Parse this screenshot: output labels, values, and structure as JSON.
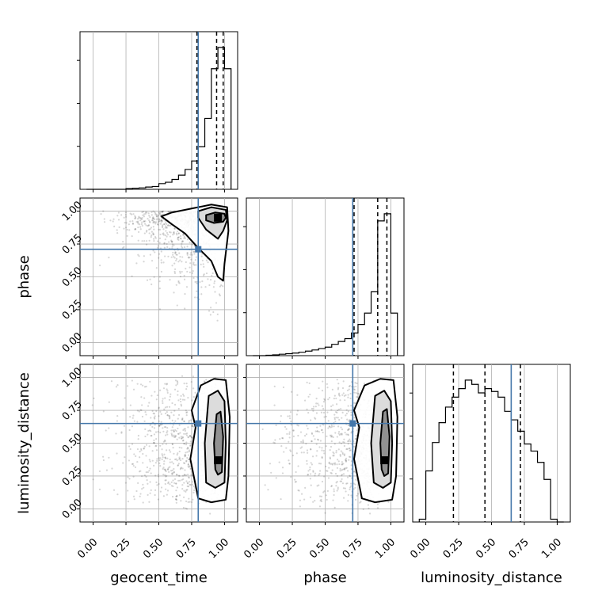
{
  "chart_data": {
    "type": "corner",
    "parameters": [
      "geocent_time",
      "phase",
      "luminosity_distance"
    ],
    "truths": {
      "geocent_time": 0.8,
      "phase": 0.71,
      "luminosity_distance": 0.65
    },
    "truth_color": "#4477aa",
    "axis_ticks": [
      "0.00",
      "0.25",
      "0.50",
      "0.75",
      "1.00"
    ],
    "x_labels": [
      "geocent_time",
      "phase",
      "luminosity_distance"
    ],
    "y_labels": [
      "phase",
      "luminosity_distance"
    ],
    "grid": true,
    "histograms": [
      {
        "parameter": "geocent_time",
        "bin_edges": [
          -0.05,
          0.0,
          0.05,
          0.1,
          0.15,
          0.2,
          0.25,
          0.3,
          0.35,
          0.4,
          0.45,
          0.5,
          0.55,
          0.6,
          0.65,
          0.7,
          0.75,
          0.8,
          0.85,
          0.9,
          0.95,
          1.0,
          1.05
        ],
        "counts": [
          0,
          0,
          0,
          0,
          0,
          0,
          0.005,
          0.008,
          0.01,
          0.016,
          0.02,
          0.04,
          0.05,
          0.07,
          0.1,
          0.14,
          0.2,
          0.3,
          0.5,
          0.85,
          1.0,
          0.85
        ],
        "quantiles": [
          0.79,
          0.94,
          0.99
        ]
      },
      {
        "parameter": "phase",
        "bin_edges": [
          -0.05,
          0.0,
          0.05,
          0.1,
          0.15,
          0.2,
          0.25,
          0.3,
          0.35,
          0.4,
          0.45,
          0.5,
          0.55,
          0.6,
          0.65,
          0.7,
          0.75,
          0.8,
          0.85,
          0.9,
          0.95,
          1.0,
          1.05
        ],
        "counts": [
          0,
          0,
          0.003,
          0.006,
          0.01,
          0.014,
          0.018,
          0.024,
          0.032,
          0.04,
          0.05,
          0.06,
          0.08,
          0.1,
          0.12,
          0.16,
          0.22,
          0.3,
          0.45,
          0.95,
          1.0,
          0.3
        ],
        "quantiles": [
          0.72,
          0.9,
          0.97
        ]
      },
      {
        "parameter": "luminosity_distance",
        "bin_edges": [
          -0.05,
          0.0,
          0.05,
          0.1,
          0.15,
          0.2,
          0.25,
          0.3,
          0.35,
          0.4,
          0.45,
          0.5,
          0.55,
          0.6,
          0.65,
          0.7,
          0.75,
          0.8,
          0.85,
          0.9,
          0.95,
          1.0,
          1.05
        ],
        "counts": [
          0.02,
          0.36,
          0.56,
          0.7,
          0.81,
          0.88,
          0.94,
          1.0,
          0.97,
          0.91,
          0.94,
          0.92,
          0.88,
          0.78,
          0.72,
          0.64,
          0.55,
          0.5,
          0.42,
          0.3,
          0.02,
          0
        ],
        "quantiles": [
          0.21,
          0.45,
          0.72
        ]
      }
    ],
    "kde_2d": [
      {
        "x_param": "geocent_time",
        "y_param": "phase",
        "peak": [
          0.95,
          0.95
        ],
        "contour_levels": [
          "inner",
          "middle",
          "outer"
        ],
        "contours": [
          [
            [
              0.86,
              0.97
            ],
            [
              0.93,
              0.99
            ],
            [
              1.0,
              0.98
            ],
            [
              1.01,
              0.95
            ],
            [
              0.99,
              0.92
            ],
            [
              0.92,
              0.91
            ],
            [
              0.86,
              0.93
            ]
          ],
          [
            [
              0.8,
              1.0
            ],
            [
              0.9,
              1.03
            ],
            [
              1.01,
              1.01
            ],
            [
              1.02,
              0.93
            ],
            [
              0.99,
              0.85
            ],
            [
              0.95,
              0.79
            ],
            [
              0.86,
              0.86
            ],
            [
              0.8,
              0.95
            ]
          ],
          [
            [
              0.52,
              0.96
            ],
            [
              0.6,
              0.99
            ],
            [
              0.75,
              1.02
            ],
            [
              0.9,
              1.05
            ],
            [
              1.02,
              1.03
            ],
            [
              1.03,
              0.85
            ],
            [
              1.0,
              0.6
            ],
            [
              0.99,
              0.47
            ],
            [
              0.95,
              0.5
            ],
            [
              0.9,
              0.62
            ],
            [
              0.8,
              0.72
            ],
            [
              0.7,
              0.83
            ],
            [
              0.6,
              0.9
            ],
            [
              0.52,
              0.96
            ]
          ]
        ]
      },
      {
        "x_param": "geocent_time",
        "y_param": "luminosity_distance",
        "peak": [
          0.95,
          0.37
        ],
        "contour_levels": [
          "inner",
          "middle",
          "outer"
        ],
        "contours": [
          [
            [
              0.93,
              0.3
            ],
            [
              0.92,
              0.5
            ],
            [
              0.94,
              0.72
            ],
            [
              0.97,
              0.74
            ],
            [
              0.99,
              0.55
            ],
            [
              0.98,
              0.28
            ],
            [
              0.95,
              0.26
            ]
          ],
          [
            [
              0.86,
              0.2
            ],
            [
              0.85,
              0.5
            ],
            [
              0.88,
              0.86
            ],
            [
              0.95,
              0.9
            ],
            [
              1.0,
              0.82
            ],
            [
              1.01,
              0.5
            ],
            [
              1.0,
              0.2
            ],
            [
              0.93,
              0.16
            ]
          ],
          [
            [
              0.8,
              0.08
            ],
            [
              0.74,
              0.38
            ],
            [
              0.78,
              0.62
            ],
            [
              0.75,
              0.75
            ],
            [
              0.82,
              0.94
            ],
            [
              0.92,
              0.99
            ],
            [
              1.01,
              0.98
            ],
            [
              1.04,
              0.7
            ],
            [
              1.03,
              0.25
            ],
            [
              1.01,
              0.07
            ],
            [
              0.9,
              0.05
            ]
          ]
        ]
      },
      {
        "x_param": "phase",
        "y_param": "luminosity_distance",
        "peak": [
          0.95,
          0.37
        ],
        "contour_levels": [
          "inner",
          "middle",
          "outer"
        ],
        "contours": [
          [
            [
              0.93,
              0.3
            ],
            [
              0.92,
              0.5
            ],
            [
              0.94,
              0.74
            ],
            [
              0.97,
              0.76
            ],
            [
              0.99,
              0.55
            ],
            [
              0.98,
              0.27
            ],
            [
              0.95,
              0.25
            ]
          ],
          [
            [
              0.87,
              0.2
            ],
            [
              0.85,
              0.5
            ],
            [
              0.88,
              0.86
            ],
            [
              0.95,
              0.9
            ],
            [
              1.0,
              0.82
            ],
            [
              1.01,
              0.5
            ],
            [
              1.0,
              0.2
            ],
            [
              0.94,
              0.16
            ]
          ],
          [
            [
              0.78,
              0.08
            ],
            [
              0.72,
              0.38
            ],
            [
              0.76,
              0.62
            ],
            [
              0.72,
              0.75
            ],
            [
              0.8,
              0.94
            ],
            [
              0.92,
              0.99
            ],
            [
              1.02,
              0.98
            ],
            [
              1.05,
              0.7
            ],
            [
              1.04,
              0.25
            ],
            [
              1.01,
              0.07
            ],
            [
              0.88,
              0.05
            ]
          ]
        ]
      }
    ]
  }
}
